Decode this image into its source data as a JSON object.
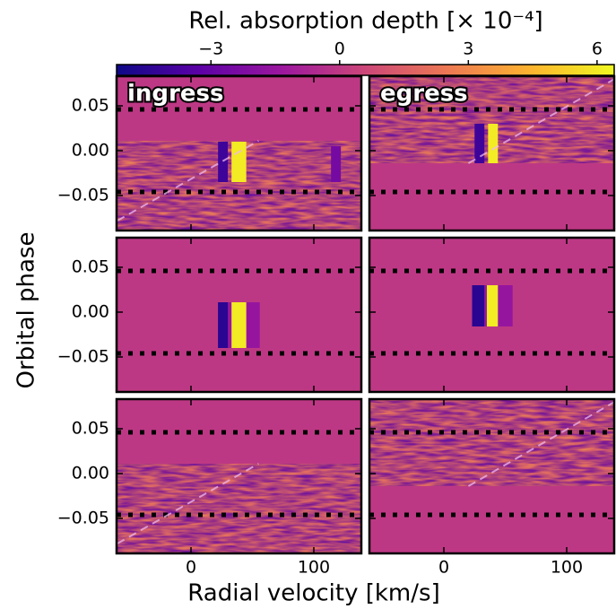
{
  "figure": {
    "xlabel": "Radial velocity [km/s]",
    "ylabel": "Orbital phase"
  },
  "chart_data": [
    {
      "type": "colorbar",
      "label": "Rel. absorption depth [× 10⁻⁴]",
      "lim": [
        -5.2,
        6.4
      ],
      "ticks": [
        {
          "value": -3,
          "label": "−3"
        },
        0,
        3,
        6
      ],
      "colors": [
        "#0d0887",
        "#5c01a6",
        "#9c179e",
        "#cc4778",
        "#ed7953",
        "#fdb42f",
        "#f0f921"
      ]
    },
    {
      "type": "heatmap",
      "annotation": "ingress",
      "xlim": [
        -60.6,
        138.7
      ],
      "ylim": [
        -0.089,
        0.083
      ],
      "xticks": [
        0,
        100
      ],
      "yticks": [
        {
          "value": 0.05,
          "label": "0.05"
        },
        {
          "value": 0.0,
          "label": "0.00"
        },
        {
          "value": -0.05,
          "label": "−0.05"
        }
      ],
      "dotted_phases": [
        0.046,
        -0.046
      ],
      "data_phase": [
        -0.089,
        0.011
      ],
      "dashed_line": {
        "x": [
          -60,
          55
        ],
        "y": [
          -0.078,
          0.011
        ]
      },
      "features": [
        {
          "x": [
            22,
            30
          ],
          "y": [
            -0.035,
            0.01
          ],
          "value": -4
        },
        {
          "x": [
            33,
            45
          ],
          "y": [
            -0.035,
            0.01
          ],
          "value": 6
        },
        {
          "x": [
            114,
            122
          ],
          "y": [
            -0.035,
            0.005
          ],
          "value": -2.5
        }
      ]
    },
    {
      "type": "heatmap",
      "annotation": "egress",
      "xlim": [
        -60.6,
        138.7
      ],
      "ylim": [
        -0.089,
        0.083
      ],
      "xticks": [
        0,
        100
      ],
      "yticks": [
        {
          "value": 0.05,
          "label": "0.05"
        },
        {
          "value": 0.0,
          "label": "0.00"
        },
        {
          "value": -0.05,
          "label": "−0.05"
        }
      ],
      "dotted_phases": [
        0.046,
        -0.046
      ],
      "data_phase": [
        -0.014,
        0.083
      ],
      "dashed_line": {
        "x": [
          20,
          139
        ],
        "y": [
          -0.014,
          0.08
        ]
      },
      "features": [
        {
          "x": [
            25,
            33
          ],
          "y": [
            -0.014,
            0.03
          ],
          "value": -4
        },
        {
          "x": [
            36,
            44
          ],
          "y": [
            -0.014,
            0.03
          ],
          "value": 6
        }
      ]
    },
    {
      "type": "heatmap",
      "xlim": [
        -60.6,
        138.7
      ],
      "ylim": [
        -0.089,
        0.083
      ],
      "xticks": [
        0,
        100
      ],
      "yticks": [
        {
          "value": 0.05,
          "label": "0.05"
        },
        {
          "value": 0.0,
          "label": "0.00"
        },
        {
          "value": -0.05,
          "label": "−0.05"
        }
      ],
      "dotted_phases": [
        0.046,
        -0.046
      ],
      "features": [
        {
          "x": [
            22,
            56
          ],
          "y": [
            -0.04,
            0.011
          ],
          "value": -1.5
        },
        {
          "x": [
            22,
            30
          ],
          "y": [
            -0.04,
            0.011
          ],
          "value": -4.5
        },
        {
          "x": [
            33,
            45
          ],
          "y": [
            -0.04,
            0.011
          ],
          "value": 6
        }
      ]
    },
    {
      "type": "heatmap",
      "xlim": [
        -60.6,
        138.7
      ],
      "ylim": [
        -0.089,
        0.083
      ],
      "xticks": [
        0,
        100
      ],
      "yticks": [
        {
          "value": 0.05,
          "label": "0.05"
        },
        {
          "value": 0.0,
          "label": "0.00"
        },
        {
          "value": -0.05,
          "label": "−0.05"
        }
      ],
      "dotted_phases": [
        0.046,
        -0.046
      ],
      "features": [
        {
          "x": [
            23,
            56
          ],
          "y": [
            -0.016,
            0.03
          ],
          "value": -1.5
        },
        {
          "x": [
            23,
            33
          ],
          "y": [
            -0.016,
            0.03
          ],
          "value": -4.5
        },
        {
          "x": [
            35,
            44
          ],
          "y": [
            -0.016,
            0.03
          ],
          "value": 6
        }
      ]
    },
    {
      "type": "heatmap",
      "xlim": [
        -60.6,
        138.7
      ],
      "ylim": [
        -0.089,
        0.083
      ],
      "xticks": [
        0,
        100
      ],
      "yticks": [
        {
          "value": 0.05,
          "label": "0.05"
        },
        {
          "value": 0.0,
          "label": "0.00"
        },
        {
          "value": -0.05,
          "label": "−0.05"
        }
      ],
      "dotted_phases": [
        0.046,
        -0.046
      ],
      "data_phase": [
        -0.089,
        0.011
      ],
      "dashed_line": {
        "x": [
          -60,
          55
        ],
        "y": [
          -0.078,
          0.011
        ]
      },
      "features": []
    },
    {
      "type": "heatmap",
      "xlim": [
        -60.6,
        138.7
      ],
      "ylim": [
        -0.089,
        0.083
      ],
      "xticks": [
        0,
        100
      ],
      "yticks": [
        {
          "value": 0.05,
          "label": "0.05"
        },
        {
          "value": 0.0,
          "label": "0.00"
        },
        {
          "value": -0.05,
          "label": "−0.05"
        }
      ],
      "dotted_phases": [
        0.046,
        -0.046
      ],
      "data_phase": [
        -0.014,
        0.083
      ],
      "dashed_line": {
        "x": [
          20,
          139
        ],
        "y": [
          -0.014,
          0.08
        ]
      },
      "features": []
    }
  ]
}
